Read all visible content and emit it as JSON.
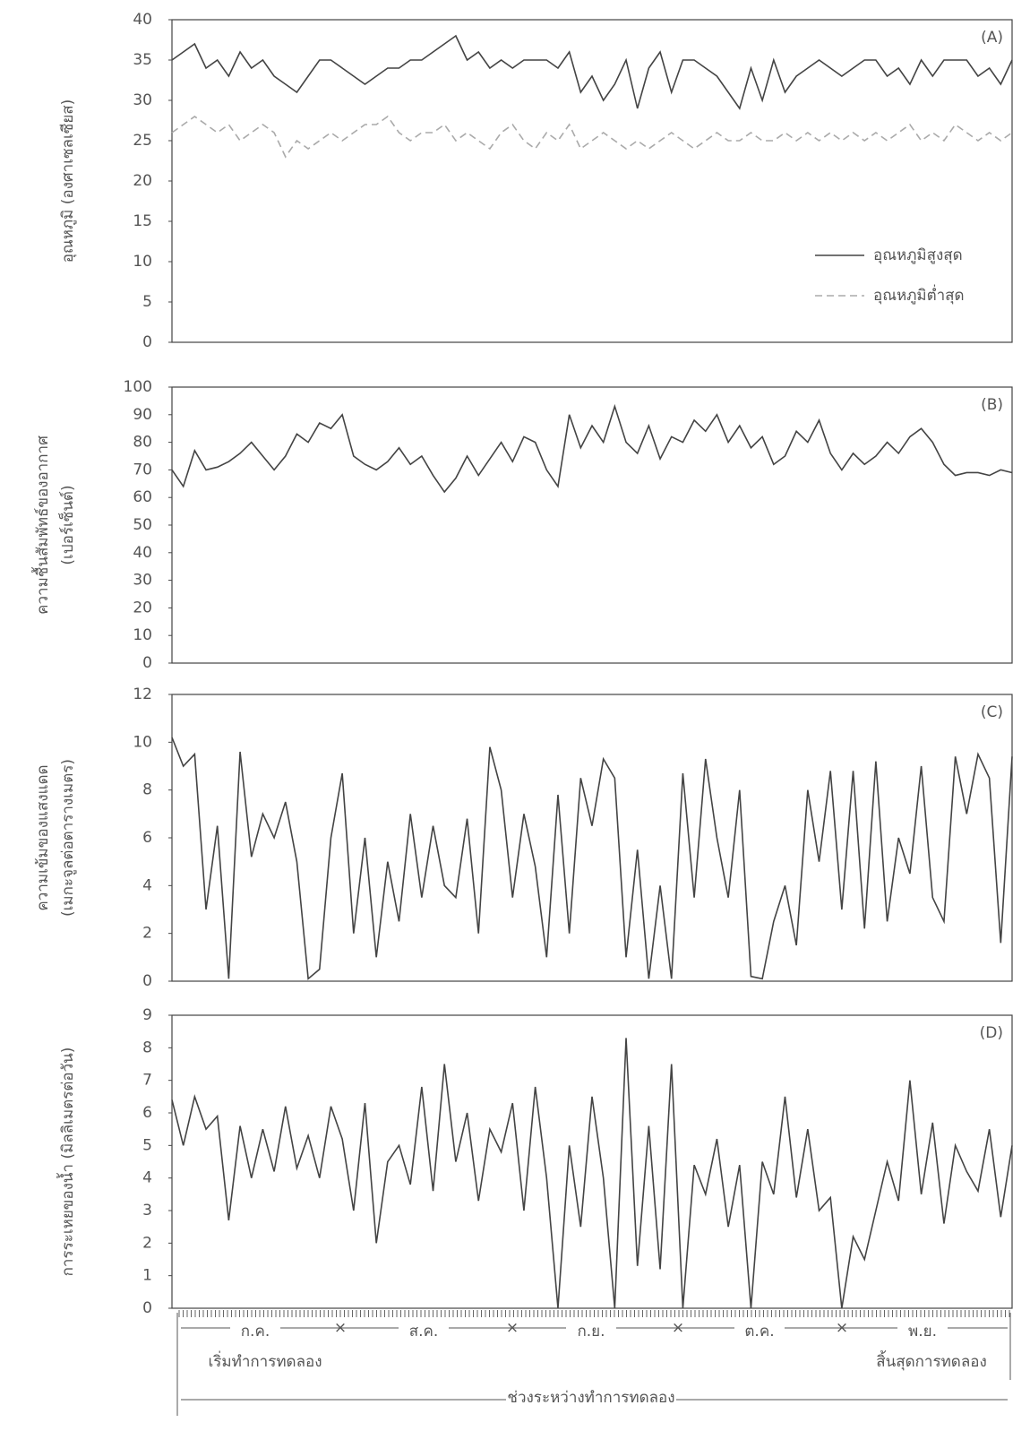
{
  "chart_data": [
    {
      "type": "line",
      "panel_label": "(A)",
      "y_label": [
        "อุณหภูมิ (องศาเซลเซียส)"
      ],
      "ylim": [
        0,
        40
      ],
      "yticks": [
        0,
        5,
        10,
        15,
        20,
        25,
        30,
        35,
        40
      ],
      "legend": "lower right",
      "series": [
        {
          "name": "อุณหภูมิสูงสุด",
          "color": "#444444",
          "style": "solid",
          "values": [
            35,
            36,
            37,
            34,
            35,
            33,
            36,
            34,
            35,
            33,
            32,
            31,
            33,
            35,
            35,
            34,
            33,
            32,
            33,
            34,
            34,
            35,
            35,
            36,
            37,
            38,
            35,
            36,
            34,
            35,
            34,
            35,
            35,
            35,
            34,
            36,
            31,
            33,
            30,
            32,
            35,
            29,
            34,
            36,
            31,
            35,
            35,
            34,
            33,
            31,
            29,
            34,
            30,
            35,
            31,
            33,
            34,
            35,
            34,
            33,
            34,
            35,
            35,
            33,
            34,
            32,
            35,
            33,
            35,
            35,
            35,
            33,
            34,
            32,
            35
          ]
        },
        {
          "name": "อุณหภูมิต่ำสุด",
          "color": "#aaaaaa",
          "style": "dashed",
          "values": [
            26,
            27,
            28,
            27,
            26,
            27,
            25,
            26,
            27,
            26,
            23,
            25,
            24,
            25,
            26,
            25,
            26,
            27,
            27,
            28,
            26,
            25,
            26,
            26,
            27,
            25,
            26,
            25,
            24,
            26,
            27,
            25,
            24,
            26,
            25,
            27,
            24,
            25,
            26,
            25,
            24,
            25,
            24,
            25,
            26,
            25,
            24,
            25,
            26,
            25,
            25,
            26,
            25,
            25,
            26,
            25,
            26,
            25,
            26,
            25,
            26,
            25,
            26,
            25,
            26,
            27,
            25,
            26,
            25,
            27,
            26,
            25,
            26,
            25,
            26
          ]
        }
      ]
    },
    {
      "type": "line",
      "panel_label": "(B)",
      "y_label": [
        "ความชื้นสัมพัทธ์ของอากาศ",
        "(เปอร์เซ็นต์)"
      ],
      "ylim": [
        0,
        100
      ],
      "yticks": [
        0,
        10,
        20,
        30,
        40,
        50,
        60,
        70,
        80,
        90,
        100
      ],
      "color": "#444444",
      "values": [
        70,
        64,
        77,
        70,
        71,
        73,
        76,
        80,
        75,
        70,
        75,
        83,
        80,
        87,
        85,
        90,
        75,
        72,
        70,
        73,
        78,
        72,
        75,
        68,
        62,
        67,
        75,
        68,
        74,
        80,
        73,
        82,
        80,
        70,
        64,
        90,
        78,
        86,
        80,
        93,
        80,
        76,
        86,
        74,
        82,
        80,
        88,
        84,
        90,
        80,
        86,
        78,
        82,
        72,
        75,
        84,
        80,
        88,
        76,
        70,
        76,
        72,
        75,
        80,
        76,
        82,
        85,
        80,
        72,
        68,
        69,
        69,
        68,
        70,
        69
      ]
    },
    {
      "type": "line",
      "panel_label": "(C)",
      "y_label": [
        "ความเข้มของแสงแดด",
        "(เมกะจูลต่อตารางเมตร)"
      ],
      "ylim": [
        0,
        12
      ],
      "yticks": [
        0,
        2,
        4,
        6,
        8,
        10,
        12
      ],
      "color": "#444444",
      "values": [
        10.2,
        9,
        9.5,
        3,
        6.5,
        0.1,
        9.6,
        5.2,
        7,
        6,
        7.5,
        5,
        0.1,
        0.5,
        6,
        8.7,
        2,
        6,
        1,
        5,
        2.5,
        7,
        3.5,
        6.5,
        4,
        3.5,
        6.8,
        2,
        9.8,
        8,
        3.5,
        7,
        4.8,
        1,
        7.8,
        2,
        8.5,
        6.5,
        9.3,
        8.5,
        1,
        5.5,
        0.1,
        4,
        0.1,
        8.7,
        3.5,
        9.3,
        6,
        3.5,
        8,
        0.2,
        0.1,
        2.5,
        4,
        1.5,
        8,
        5,
        8.8,
        3,
        8.8,
        2.2,
        9.2,
        2.5,
        6,
        4.5,
        9,
        3.5,
        2.5,
        9.4,
        7,
        9.5,
        8.5,
        1.6,
        9.4
      ]
    },
    {
      "type": "line",
      "panel_label": "(D)",
      "y_label": [
        "การระเหยของน้ำ (มิลลิเมตรต่อวัน)"
      ],
      "ylim": [
        0,
        9
      ],
      "yticks": [
        0,
        1,
        2,
        3,
        4,
        5,
        6,
        7,
        8,
        9
      ],
      "color": "#444444",
      "values": [
        6.4,
        5,
        6.5,
        5.5,
        5.9,
        2.7,
        5.6,
        4,
        5.5,
        4.2,
        6.2,
        4.3,
        5.3,
        4,
        6.2,
        5.2,
        3,
        6.3,
        2,
        4.5,
        5,
        3.8,
        6.8,
        3.6,
        7.5,
        4.5,
        6,
        3.3,
        5.5,
        4.8,
        6.3,
        3,
        6.8,
        4,
        0,
        5,
        2.5,
        6.5,
        4,
        0,
        8.3,
        1.3,
        5.6,
        1.2,
        7.5,
        0,
        4.4,
        3.5,
        5.2,
        2.5,
        4.4,
        0,
        4.5,
        3.5,
        6.5,
        3.4,
        5.5,
        3,
        3.4,
        0,
        2.2,
        1.5,
        3,
        4.5,
        3.3,
        7,
        3.5,
        5.7,
        2.6,
        5,
        4.2,
        3.6,
        5.5,
        2.8,
        5
      ]
    }
  ],
  "timeline": {
    "months": [
      "ก.ค.",
      "ส.ค.",
      "ก.ย.",
      "ต.ค.",
      "พ.ย."
    ],
    "start": "เริ่มทำการทดลอง",
    "period": "ช่วงระหว่างทำการทดลอง",
    "end": "สิ้นสุดการทดลอง"
  }
}
